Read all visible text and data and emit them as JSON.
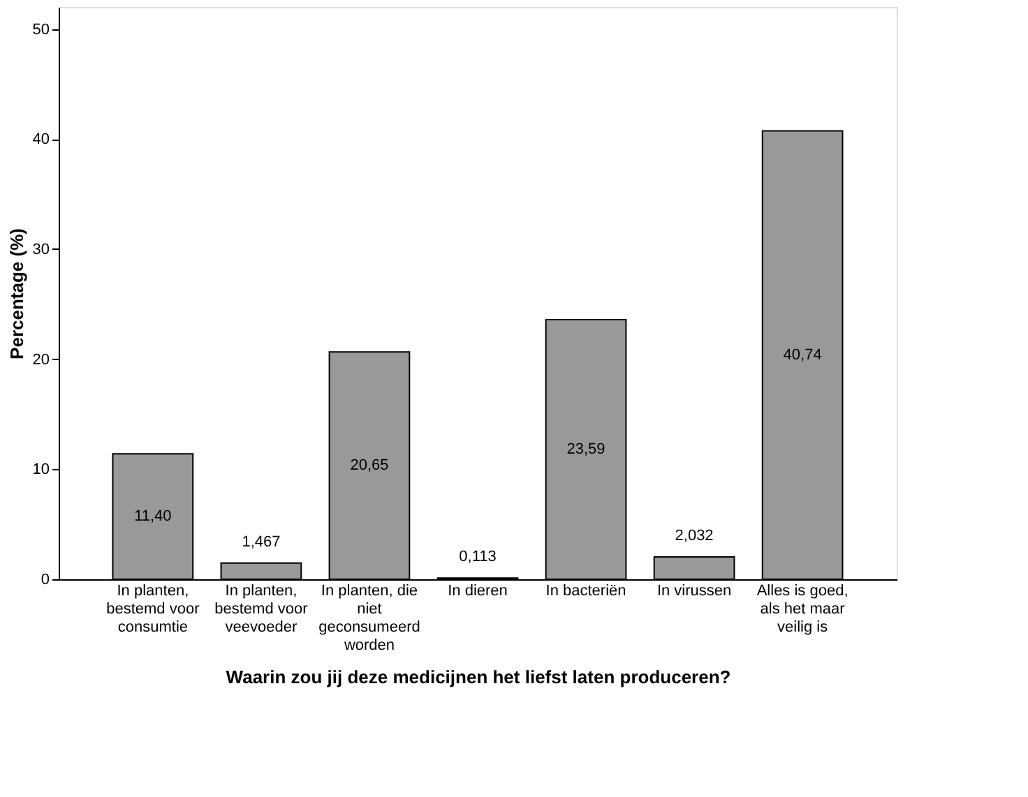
{
  "chart_data": {
    "type": "bar",
    "xlabel": "Waarin zou jij deze medicijnen het liefst laten produceren?",
    "ylabel": "Percentage (%)",
    "categories": [
      "In planten, bestemd voor consumtie",
      "In planten, bestemd voor veevoeder",
      "In planten, die niet geconsumeerd worden",
      "In dieren",
      "In bacteriën",
      "In virussen",
      "Alles is goed, als het maar veilig is"
    ],
    "values": [
      11.4,
      1.467,
      20.65,
      0.113,
      23.59,
      2.032,
      40.74
    ],
    "value_labels": [
      "11,40",
      "1,467",
      "20,65",
      "0,113",
      "23,59",
      "2,032",
      "40,74"
    ],
    "color": "#999999",
    "ylim": [
      0,
      52
    ],
    "yticks": [
      0,
      10,
      20,
      30,
      40,
      50
    ],
    "grid": false
  }
}
